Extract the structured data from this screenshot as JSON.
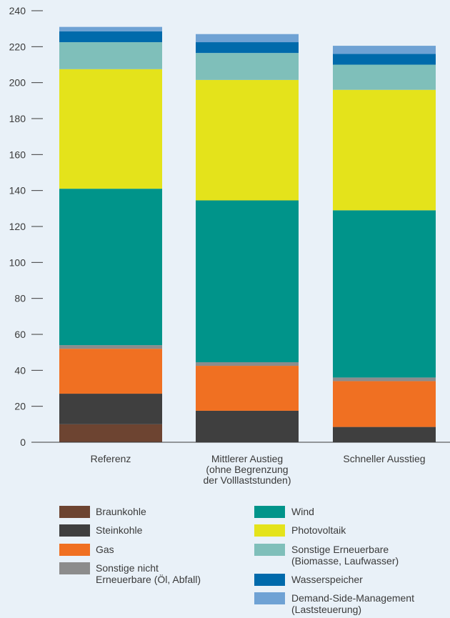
{
  "chart_data": {
    "type": "bar",
    "stacked": true,
    "ylim": [
      0,
      240
    ],
    "yticks": [
      0,
      20,
      40,
      60,
      80,
      100,
      120,
      140,
      160,
      180,
      200,
      220,
      240
    ],
    "grid": false,
    "categories": [
      "Referenz",
      "Mittlerer Austieg\n(ohne Begrenzung\nder Volllaststunden)",
      "Schneller Ausstieg"
    ],
    "series": [
      {
        "name": "Braunkohle",
        "color": "#6d4431",
        "values": [
          10,
          0,
          0
        ]
      },
      {
        "name": "Steinkohle",
        "color": "#3f3f3f",
        "values": [
          17,
          17.5,
          8.5
        ]
      },
      {
        "name": "Gas",
        "color": "#f07022",
        "values": [
          25,
          25,
          25.5
        ]
      },
      {
        "name": "Sonstige nicht\nErneuerbare (Öl, Abfall)",
        "color": "#8c8c8c",
        "values": [
          2,
          2,
          2
        ]
      },
      {
        "name": "Wind",
        "color": "#00948a",
        "values": [
          87,
          90,
          93
        ]
      },
      {
        "name": "Photovoltaik",
        "color": "#e4e31b",
        "values": [
          66.5,
          67,
          67
        ]
      },
      {
        "name": "Sonstige Erneuerbare\n(Biomasse, Laufwasser)",
        "color": "#7fbfba",
        "values": [
          15,
          15,
          14
        ]
      },
      {
        "name": "Wasserspeicher",
        "color": "#006aab",
        "values": [
          6,
          6,
          6
        ]
      },
      {
        "name": "Demand-Side-Management\n(Laststeuerung)",
        "color": "#6fa2d4",
        "values": [
          2.5,
          4.5,
          4.5
        ]
      }
    ]
  }
}
